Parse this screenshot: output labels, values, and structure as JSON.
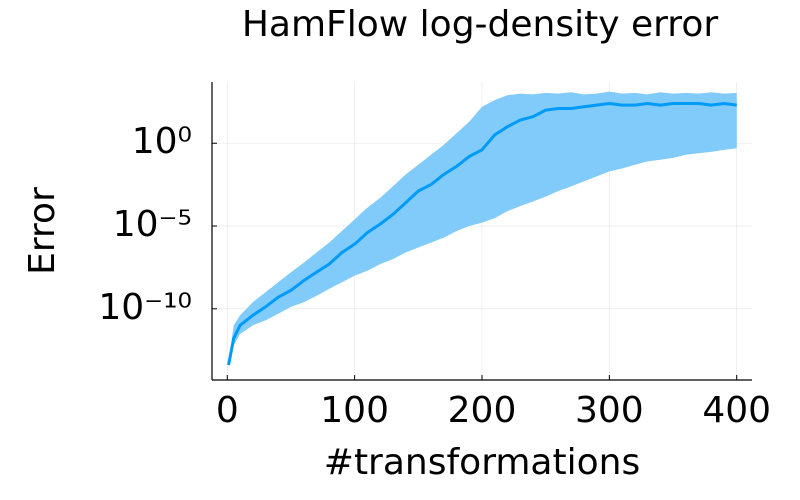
{
  "chart_data": {
    "type": "line",
    "title": "HamFlow log-density error",
    "x_label": "#transformations",
    "y_label": "Error",
    "color": "#009af9",
    "band_color": "#80cbf9",
    "log_y": true,
    "grid": true,
    "xlim": [
      -12,
      412
    ],
    "xticks": [
      0,
      100,
      200,
      300,
      400
    ],
    "ylim": [
      5e-15,
      5000
    ],
    "yticks": [
      {
        "value": 1e-10,
        "label": "10⁻¹⁰"
      },
      {
        "value": 1e-05,
        "label": "10⁻⁵"
      },
      {
        "value": 1,
        "label": "10⁰"
      }
    ],
    "x": [
      1,
      5,
      10,
      20,
      30,
      40,
      50,
      60,
      70,
      80,
      90,
      100,
      110,
      120,
      130,
      140,
      150,
      160,
      170,
      180,
      190,
      200,
      210,
      220,
      230,
      240,
      250,
      260,
      270,
      280,
      290,
      300,
      310,
      320,
      330,
      340,
      350,
      360,
      370,
      380,
      390,
      400
    ],
    "values": [
      4e-14,
      1.6e-12,
      1e-11,
      4e-11,
      1.3e-10,
      5e-10,
      1.3e-09,
      5e-09,
      1.6e-08,
      5e-08,
      2.5e-07,
      8e-07,
      4e-06,
      1.3e-05,
      5e-05,
      0.00025,
      0.0013,
      0.0032,
      0.013,
      0.04,
      0.16,
      0.4,
      3.2,
      10,
      25,
      40,
      100,
      125,
      125,
      160,
      200,
      250,
      200,
      200,
      250,
      200,
      250,
      250,
      250,
      200,
      250,
      200
    ],
    "upper": [
      5e-14,
      1e-11,
      4e-11,
      2.5e-10,
      1e-09,
      4e-09,
      1.6e-08,
      6e-08,
      2.5e-07,
      1e-06,
      5e-06,
      2.5e-05,
      0.00013,
      0.0005,
      0.0025,
      0.013,
      0.05,
      0.2,
      0.8,
      4,
      20,
      160,
      400,
      800,
      1000,
      900,
      1100,
      1000,
      1200,
      900,
      1000,
      1300,
      1000,
      1100,
      900,
      1200,
      1000,
      1100,
      1000,
      1200,
      1000,
      1100
    ],
    "lower": [
      3e-14,
      6e-13,
      3e-12,
      1e-11,
      2e-11,
      5e-11,
      1.3e-10,
      2.5e-10,
      6e-10,
      1.6e-09,
      4e-09,
      1e-08,
      2e-08,
      5e-08,
      1e-07,
      2.5e-07,
      5e-07,
      1e-06,
      2e-06,
      5e-06,
      1e-05,
      1.6e-05,
      3e-05,
      8e-05,
      0.00016,
      0.0003,
      0.0006,
      0.0013,
      0.0025,
      0.005,
      0.01,
      0.02,
      0.03,
      0.05,
      0.08,
      0.1,
      0.13,
      0.2,
      0.25,
      0.3,
      0.4,
      0.5
    ]
  }
}
